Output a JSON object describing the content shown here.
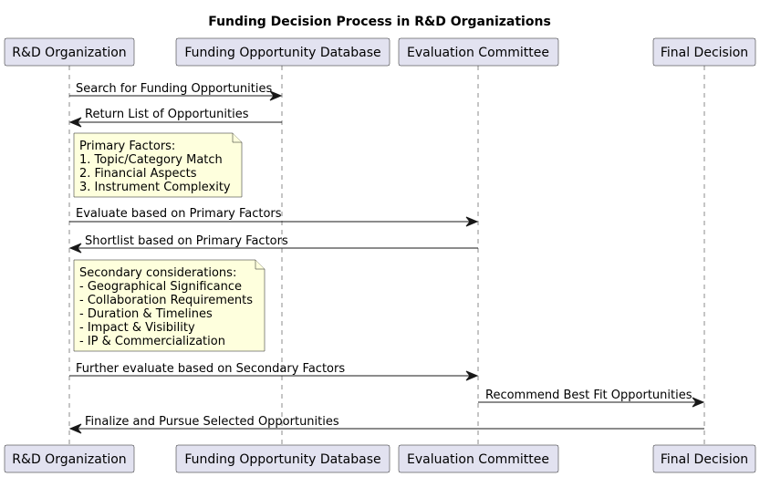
{
  "diagram": {
    "title": "Funding Decision Process in R&D Organizations",
    "participants": [
      {
        "id": "rd",
        "label": "R&D Organization"
      },
      {
        "id": "db",
        "label": "Funding Opportunity Database"
      },
      {
        "id": "ec",
        "label": "Evaluation Committee"
      },
      {
        "id": "fd",
        "label": "Final Decision"
      }
    ],
    "messages": [
      {
        "from": "rd",
        "to": "db",
        "label": "Search for Funding Opportunities"
      },
      {
        "from": "db",
        "to": "rd",
        "label": "Return List of Opportunities"
      },
      {
        "from": "rd",
        "to": "ec",
        "label": "Evaluate based on Primary Factors"
      },
      {
        "from": "ec",
        "to": "rd",
        "label": "Shortlist based on Primary Factors"
      },
      {
        "from": "rd",
        "to": "ec",
        "label": "Further evaluate based on Secondary Factors"
      },
      {
        "from": "ec",
        "to": "fd",
        "label": "Recommend Best Fit Opportunities"
      },
      {
        "from": "fd",
        "to": "rd",
        "label": "Finalize and Pursue Selected Opportunities"
      }
    ],
    "notes": [
      {
        "lines": [
          "Primary Factors:",
          "1. Topic/Category Match",
          "2. Financial Aspects",
          "3. Instrument Complexity"
        ]
      },
      {
        "lines": [
          "Secondary considerations:",
          "- Geographical Significance",
          "- Collaboration Requirements",
          "- Duration & Timelines",
          "- Impact & Visibility",
          "- IP & Commercialization"
        ]
      }
    ]
  }
}
